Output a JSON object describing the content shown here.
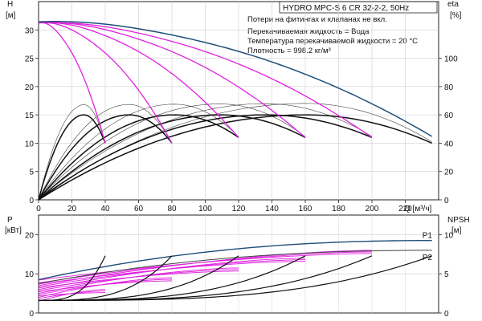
{
  "chart_data": {
    "type": "line",
    "title": "HYDRO MPC-S 6 CR 32-2-2, 50Hz",
    "notes": [
      "Потери на фитингах и клапанах не вкл.",
      "Перекачиваемая жидкость = Вода",
      "Температура перекачиваемой жидкости = 20 °C",
      "Плотность = 998.2 кг/м³"
    ],
    "colors": {
      "max_curve": "#1f4e79",
      "reduced": "#e020e0",
      "efficiency": "#111111",
      "frame": "#222222"
    },
    "head_panel": {
      "ylabel_left": "H",
      "yunit_left": "[м]",
      "ylabel_right": "eta",
      "yunit_right": "[%]",
      "xlabel": "Q [м³/ч]",
      "xticks": [
        "0",
        "20",
        "40",
        "60",
        "80",
        "100",
        "120",
        "140",
        "160",
        "180",
        "200",
        "220"
      ],
      "yticks_left": [
        "0",
        "5",
        "10",
        "15",
        "20",
        "25",
        "30"
      ],
      "yticks_right": [
        "0",
        "20",
        "40",
        "60",
        "80",
        "100"
      ],
      "xlim": [
        0,
        240
      ],
      "ylim": [
        0,
        35
      ],
      "eta_lim": [
        0,
        140
      ],
      "max_curve": {
        "shutoff": 31.2,
        "q_end": 236,
        "h_end": 11.2
      },
      "reduced_curves": [
        {
          "shutoff": 31,
          "q_end": 40,
          "h_end": 10
        },
        {
          "shutoff": 31,
          "q_end": 80,
          "h_end": 10
        },
        {
          "shutoff": 31,
          "q_end": 120,
          "h_end": 11
        },
        {
          "shutoff": 31,
          "q_end": 160,
          "h_end": 11
        },
        {
          "shutoff": 31,
          "q_end": 200,
          "h_end": 11
        }
      ],
      "efficiency_curves": [
        {
          "q_end": 40,
          "peak": 60,
          "eta_end": 40
        },
        {
          "q_end": 80,
          "peak": 60,
          "eta_end": 40
        },
        {
          "q_end": 120,
          "peak": 60,
          "eta_end": 44
        },
        {
          "q_end": 160,
          "peak": 60,
          "eta_end": 44
        },
        {
          "q_end": 200,
          "peak": 60,
          "eta_end": 44
        },
        {
          "q_end": 236,
          "peak": 60,
          "eta_end": 40
        }
      ]
    },
    "power_panel": {
      "ylabel_left": "P",
      "yunit_left": "[кВт]",
      "ylabel_right": "NPSH",
      "yunit_right": "[м]",
      "yticks_left": [
        "0",
        "10",
        "20"
      ],
      "yticks_right": [
        "0",
        "5",
        "10"
      ],
      "ylim": [
        0,
        25
      ],
      "npsh_lim": [
        0,
        12.5
      ],
      "series_labels": [
        "P1",
        "P2"
      ],
      "P1_curve": {
        "start": 8.5,
        "end": 18.5
      },
      "P2_curve": {
        "start": 7.5,
        "end": 16
      },
      "reduced_power": [
        {
          "q_end": 40,
          "start": 3,
          "end": 6
        },
        {
          "q_end": 80,
          "start": 4,
          "end": 9
        },
        {
          "q_end": 120,
          "start": 5,
          "end": 11.5
        },
        {
          "q_end": 160,
          "start": 6,
          "end": 14
        },
        {
          "q_end": 200,
          "start": 7,
          "end": 16
        }
      ],
      "npsh_curves": [
        {
          "q_end": 40,
          "end": 7.3
        },
        {
          "q_end": 80,
          "end": 7.3
        },
        {
          "q_end": 120,
          "end": 7.3
        },
        {
          "q_end": 160,
          "end": 7.3
        },
        {
          "q_end": 200,
          "end": 7.3
        },
        {
          "q_end": 236,
          "end": 7.3
        }
      ]
    }
  }
}
